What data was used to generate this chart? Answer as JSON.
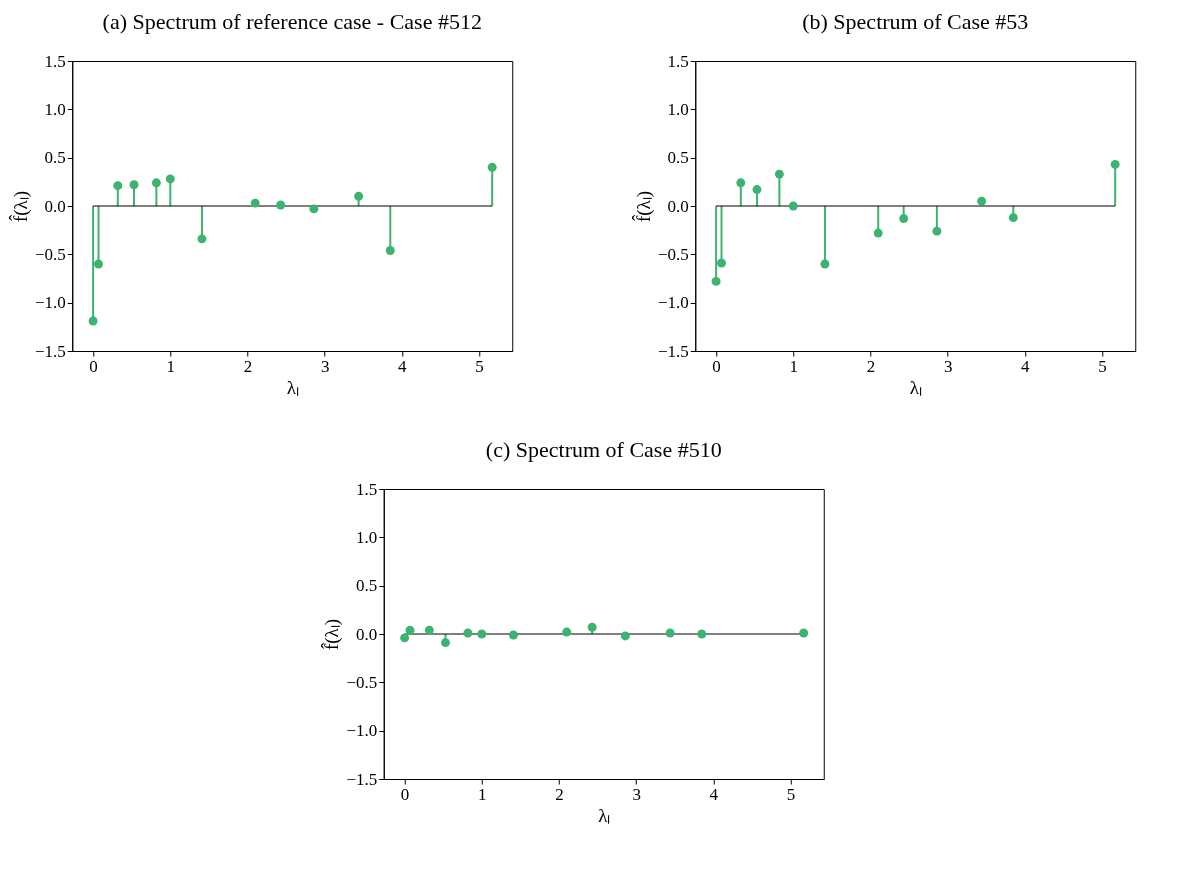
{
  "chart_data": [
    {
      "type": "lollipop",
      "title": "(a)  Spectrum of reference case - Case #512",
      "xlabel": "λₗ",
      "ylabel": "f̂(λₗ)",
      "marker": "circle",
      "color": "#3cb371",
      "x": [
        0,
        0.07,
        0.32,
        0.53,
        0.82,
        1.0,
        1.41,
        2.1,
        2.43,
        2.86,
        3.44,
        3.85,
        5.17
      ],
      "values": [
        -1.19,
        -0.6,
        0.21,
        0.22,
        0.24,
        0.28,
        -0.34,
        0.03,
        0.01,
        -0.03,
        0.1,
        -0.46,
        0.4
      ],
      "xlim": [
        -0.27,
        5.43
      ],
      "xticks": [
        0,
        1,
        2,
        3,
        4,
        5
      ],
      "ylim": [
        -1.5,
        1.5
      ],
      "yticks": [
        {
          "value": -1.5,
          "label": "−1.5"
        },
        {
          "value": -1.0,
          "label": "−1.0"
        },
        {
          "value": -0.5,
          "label": "−0.5"
        },
        {
          "value": 0,
          "label": "0.0"
        },
        {
          "value": 0.5,
          "label": "0.5"
        },
        {
          "value": 1,
          "label": "1.0"
        },
        {
          "value": 1.5,
          "label": "1.5"
        }
      ]
    },
    {
      "type": "lollipop",
      "title": "(b) Spectrum of Case #53",
      "xlabel": "λₗ",
      "ylabel": "f̂(λₗ)",
      "marker": "circle",
      "color": "#3cb371",
      "x": [
        0,
        0.07,
        0.32,
        0.53,
        0.82,
        1.0,
        1.41,
        2.1,
        2.43,
        2.86,
        3.44,
        3.85,
        5.17
      ],
      "values": [
        -0.78,
        -0.59,
        0.24,
        0.17,
        0.33,
        0.0,
        -0.6,
        -0.28,
        -0.13,
        -0.26,
        0.05,
        -0.12,
        0.43
      ],
      "xlim": [
        -0.27,
        5.43
      ],
      "xticks": [
        0,
        1,
        2,
        3,
        4,
        5
      ],
      "ylim": [
        -1.5,
        1.5
      ],
      "yticks": [
        {
          "value": -1.5,
          "label": "−1.5"
        },
        {
          "value": -1.0,
          "label": "−1.0"
        },
        {
          "value": -0.5,
          "label": "−0.5"
        },
        {
          "value": 0,
          "label": "0.0"
        },
        {
          "value": 0.5,
          "label": "0.5"
        },
        {
          "value": 1,
          "label": "1.0"
        },
        {
          "value": 1.5,
          "label": "1.5"
        }
      ]
    },
    {
      "type": "lollipop",
      "title": "(c) Spectrum of Case #510",
      "xlabel": "λₗ",
      "ylabel": "f̂(λₗ)",
      "marker": "circle",
      "color": "#3cb371",
      "x": [
        0,
        0.07,
        0.32,
        0.53,
        0.82,
        1.0,
        1.41,
        2.1,
        2.43,
        2.86,
        3.44,
        3.85,
        5.17
      ],
      "values": [
        -0.04,
        0.04,
        0.04,
        -0.09,
        0.01,
        0.0,
        -0.01,
        0.02,
        0.07,
        -0.02,
        0.01,
        0.0,
        0.01
      ],
      "xlim": [
        -0.27,
        5.43
      ],
      "xticks": [
        0,
        1,
        2,
        3,
        4,
        5
      ],
      "ylim": [
        -1.5,
        1.5
      ],
      "yticks": [
        {
          "value": -1.5,
          "label": "−1.5"
        },
        {
          "value": -1.0,
          "label": "−1.0"
        },
        {
          "value": -0.5,
          "label": "−0.5"
        },
        {
          "value": 0,
          "label": "0.0"
        },
        {
          "value": 0.5,
          "label": "0.5"
        },
        {
          "value": 1,
          "label": "1.0"
        },
        {
          "value": 1.5,
          "label": "1.5"
        }
      ]
    }
  ]
}
